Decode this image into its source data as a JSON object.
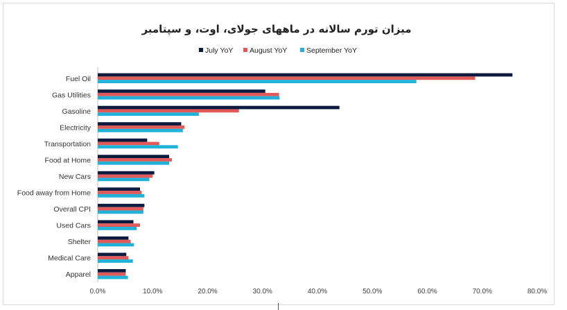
{
  "chart_data": {
    "type": "bar",
    "orientation": "horizontal",
    "title": "میزان تورم سالانه در ماههای جولای، اوت، و سپتامبر",
    "xlabel": "",
    "ylabel": "",
    "xlim": [
      0,
      0.8
    ],
    "x_ticks": [
      "0.0%",
      "10.0%",
      "20.0%",
      "30.0%",
      "40.0%",
      "50.0%",
      "60.0%",
      "70.0%",
      "80.0%"
    ],
    "grid": false,
    "legend_position": "top",
    "categories": [
      "Fuel Oil",
      "Gas Utilities",
      "Gasoline",
      "Electricity",
      "Transportation",
      "Food at Home",
      "New Cars",
      "Food away from Home",
      "Overall CPI",
      "Used Cars",
      "Shelter",
      "Medical Care",
      "Apparel"
    ],
    "series": [
      {
        "name": "July YoY",
        "color": "#0d1b3e",
        "values": [
          0.755,
          0.305,
          0.44,
          0.152,
          0.09,
          0.13,
          0.103,
          0.077,
          0.085,
          0.065,
          0.056,
          0.052,
          0.051
        ]
      },
      {
        "name": "August YoY",
        "color": "#e05a5a",
        "values": [
          0.687,
          0.33,
          0.257,
          0.158,
          0.112,
          0.135,
          0.1,
          0.08,
          0.083,
          0.077,
          0.06,
          0.056,
          0.051
        ]
      },
      {
        "name": "September YoY",
        "color": "#20b2d8",
        "values": [
          0.58,
          0.331,
          0.184,
          0.155,
          0.146,
          0.13,
          0.094,
          0.085,
          0.083,
          0.071,
          0.066,
          0.064,
          0.055
        ]
      }
    ]
  }
}
